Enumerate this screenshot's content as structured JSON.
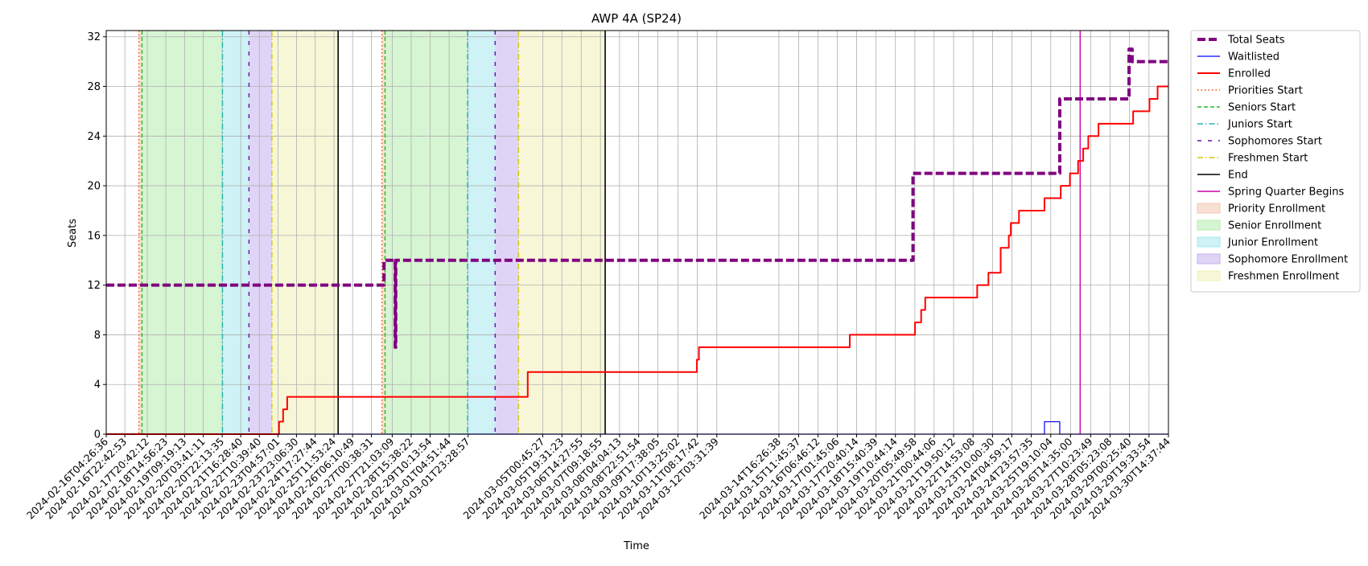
{
  "chart_data": {
    "type": "line",
    "title": "AWP 4A (SP24)",
    "xlabel": "Time",
    "ylabel": "Seats",
    "ylim": [
      0,
      32.5
    ],
    "yticks": [
      0,
      4,
      8,
      12,
      16,
      20,
      24,
      28,
      32
    ],
    "x_range": [
      "2024-02-16T04:26:36",
      "2024-03-30T14:37:44"
    ],
    "xticks": [
      "2024-02-16T04:26:36",
      "2024-02-16T22:42:53",
      "2024-02-17T20:42:12",
      "2024-02-18T14:56:23",
      "2024-02-19T09:19:13",
      "2024-02-20T03:41:11",
      "2024-02-20T22:13:35",
      "2024-02-21T16:28:40",
      "2024-02-22T10:39:40",
      "2024-02-23T04:57:01",
      "2024-02-23T23:06:30",
      "2024-02-24T17:27:44",
      "2024-02-25T11:53:24",
      "2024-02-26T06:10:49",
      "2024-02-27T00:38:31",
      "2024-02-27T21:03:09",
      "2024-02-28T15:38:22",
      "2024-02-29T10:13:54",
      "2024-03-01T04:51:44",
      "2024-03-01T23:28:57",
      "2024-03-05T00:45:27",
      "2024-03-05T19:31:23",
      "2024-03-06T14:27:55",
      "2024-03-07T09:18:55",
      "2024-03-08T04:04:13",
      "2024-03-08T22:51:54",
      "2024-03-09T17:38:05",
      "2024-03-10T13:25:02",
      "2024-03-11T08:17:42",
      "2024-03-12T03:31:39",
      "2024-03-14T16:26:38",
      "2024-03-15T11:45:37",
      "2024-03-16T06:46:12",
      "2024-03-17T01:45:06",
      "2024-03-17T20:40:14",
      "2024-03-18T15:40:39",
      "2024-03-19T10:44:14",
      "2024-03-20T05:49:58",
      "2024-03-21T00:44:06",
      "2024-03-21T19:50:12",
      "2024-03-22T14:53:08",
      "2024-03-23T10:00:30",
      "2024-03-24T04:59:17",
      "2024-03-24T23:57:35",
      "2024-03-25T19:10:04",
      "2024-03-26T14:35:00",
      "2024-03-27T10:23:49",
      "2024-03-28T05:23:08",
      "2024-03-29T00:25:40",
      "2024-03-29T19:33:54",
      "2024-03-30T14:37:44"
    ],
    "grid": true,
    "legend_position": "outside-top-right",
    "legend": [
      {
        "label": "Total Seats",
        "kind": "line",
        "color": "#800080",
        "dash": "10,4",
        "width": 4
      },
      {
        "label": "Waitlisted",
        "kind": "line",
        "color": "#0000ff",
        "dash": "",
        "width": 1.2
      },
      {
        "label": "Enrolled",
        "kind": "line",
        "color": "#ff0000",
        "dash": "",
        "width": 2
      },
      {
        "label": "Priorities Start",
        "kind": "line",
        "color": "#ff4500",
        "dash": "1.5,3",
        "width": 1.4
      },
      {
        "label": "Seniors Start",
        "kind": "line",
        "color": "#22bb22",
        "dash": "5,3",
        "width": 1.4
      },
      {
        "label": "Juniors Start",
        "kind": "line",
        "color": "#1fb5bb",
        "dash": "7,3,1.5,3",
        "width": 1.4
      },
      {
        "label": "Sophomores Start",
        "kind": "line",
        "color": "#6a0dad",
        "dash": "5,8",
        "width": 1.4
      },
      {
        "label": "Freshmen Start",
        "kind": "line",
        "color": "#d4c700",
        "dash": "7,3,1.5,3",
        "width": 1.4
      },
      {
        "label": "End",
        "kind": "line",
        "color": "#000000",
        "dash": "",
        "width": 1.6
      },
      {
        "label": "Spring Quarter Begins",
        "kind": "line",
        "color": "#cc00aa",
        "dash": "",
        "width": 1.4
      },
      {
        "label": "Priority Enrollment",
        "kind": "patch",
        "color": "#f4c7b0"
      },
      {
        "label": "Senior Enrollment",
        "kind": "patch",
        "color": "#b5ecad"
      },
      {
        "label": "Junior Enrollment",
        "kind": "patch",
        "color": "#a6e8ee"
      },
      {
        "label": "Sophomore Enrollment",
        "kind": "patch",
        "color": "#c5b0ee"
      },
      {
        "label": "Freshmen Enrollment",
        "kind": "patch",
        "color": "#f1f1b8"
      }
    ],
    "regions": [
      {
        "label": "Priority Enrollment",
        "start": "2024-02-17T12:30:00",
        "end": "2024-02-17T15:30:00",
        "color": "#f4c7b0"
      },
      {
        "label": "Senior Enrollment",
        "start": "2024-02-17T15:30:00",
        "end": "2024-02-20T22:30:00",
        "color": "#b5ecad"
      },
      {
        "label": "Junior Enrollment",
        "start": "2024-02-20T22:30:00",
        "end": "2024-02-22T00:30:00",
        "color": "#a6e8ee"
      },
      {
        "label": "Sophomore Enrollment",
        "start": "2024-02-22T00:30:00",
        "end": "2024-02-22T23:00:00",
        "color": "#c5b0ee"
      },
      {
        "label": "Freshmen Enrollment",
        "start": "2024-02-22T23:00:00",
        "end": "2024-02-25T16:00:00",
        "color": "#f1f1b8"
      },
      {
        "label": "Priority Enrollment",
        "start": "2024-02-27T11:00:00",
        "end": "2024-02-27T14:00:00",
        "color": "#f4c7b0"
      },
      {
        "label": "Senior Enrollment",
        "start": "2024-02-27T14:00:00",
        "end": "2024-03-01T23:00:00",
        "color": "#b5ecad"
      },
      {
        "label": "Junior Enrollment",
        "start": "2024-03-01T23:00:00",
        "end": "2024-03-03T02:00:00",
        "color": "#a6e8ee"
      },
      {
        "label": "Sophomore Enrollment",
        "start": "2024-03-03T02:00:00",
        "end": "2024-03-04T01:00:00",
        "color": "#c5b0ee"
      },
      {
        "label": "Freshmen Enrollment",
        "start": "2024-03-04T01:00:00",
        "end": "2024-03-07T14:00:00",
        "color": "#f1f1b8"
      }
    ],
    "event_lines": [
      {
        "label": "Priorities Start",
        "x": "2024-02-17T12:30:00"
      },
      {
        "label": "Seniors Start",
        "x": "2024-02-17T15:30:00"
      },
      {
        "label": "Juniors Start",
        "x": "2024-02-20T22:30:00"
      },
      {
        "label": "Sophomores Start",
        "x": "2024-02-22T00:30:00"
      },
      {
        "label": "Freshmen Start",
        "x": "2024-02-22T23:00:00"
      },
      {
        "label": "End",
        "x": "2024-02-25T16:00:00"
      },
      {
        "label": "Priorities Start",
        "x": "2024-02-27T11:00:00"
      },
      {
        "label": "Seniors Start",
        "x": "2024-02-27T14:00:00"
      },
      {
        "label": "Juniors Start",
        "x": "2024-03-01T23:00:00"
      },
      {
        "label": "Sophomores Start",
        "x": "2024-03-03T02:00:00"
      },
      {
        "label": "Freshmen Start",
        "x": "2024-03-04T01:00:00"
      },
      {
        "label": "End",
        "x": "2024-03-07T14:00:00"
      },
      {
        "label": "Spring Quarter Begins",
        "x": "2024-03-27T00:00:00"
      }
    ],
    "series": [
      {
        "name": "Total Seats",
        "step": "post",
        "points": [
          [
            "2024-02-16T04:26:36",
            12
          ],
          [
            "2024-02-27T13:00:00",
            12
          ],
          [
            "2024-02-27T13:00:00",
            14
          ],
          [
            "2024-02-28T00:00:00",
            14
          ],
          [
            "2024-02-28T00:00:00",
            7
          ],
          [
            "2024-02-28T00:30:00",
            14
          ],
          [
            "2024-03-20T04:00:00",
            14
          ],
          [
            "2024-03-20T04:00:00",
            21
          ],
          [
            "2024-03-26T04:00:00",
            21
          ],
          [
            "2024-03-26T04:00:00",
            27
          ],
          [
            "2024-03-29T00:00:00",
            27
          ],
          [
            "2024-03-29T00:00:00",
            31
          ],
          [
            "2024-03-29T03:00:00",
            30
          ],
          [
            "2024-03-30T14:37:44",
            30
          ]
        ]
      },
      {
        "name": "Waitlisted",
        "step": "post",
        "points": [
          [
            "2024-02-16T04:26:36",
            0
          ],
          [
            "2024-03-25T13:00:00",
            0
          ],
          [
            "2024-03-25T13:00:00",
            1
          ],
          [
            "2024-03-26T04:00:00",
            1
          ],
          [
            "2024-03-26T04:00:00",
            0
          ],
          [
            "2024-03-30T14:37:44",
            0
          ]
        ]
      },
      {
        "name": "Enrolled",
        "step": "post",
        "points": [
          [
            "2024-02-16T04:26:36",
            0
          ],
          [
            "2024-02-23T06:00:00",
            1
          ],
          [
            "2024-02-23T10:00:00",
            2
          ],
          [
            "2024-02-23T14:00:00",
            3
          ],
          [
            "2024-03-04T10:00:00",
            5
          ],
          [
            "2024-03-11T08:00:00",
            6
          ],
          [
            "2024-03-11T10:00:00",
            7
          ],
          [
            "2024-03-17T14:00:00",
            8
          ],
          [
            "2024-03-20T06:00:00",
            9
          ],
          [
            "2024-03-20T12:00:00",
            10
          ],
          [
            "2024-03-20T16:00:00",
            11
          ],
          [
            "2024-03-22T19:00:00",
            12
          ],
          [
            "2024-03-23T06:00:00",
            13
          ],
          [
            "2024-03-23T18:00:00",
            15
          ],
          [
            "2024-03-24T02:00:00",
            16
          ],
          [
            "2024-03-24T04:00:00",
            17
          ],
          [
            "2024-03-24T12:00:00",
            18
          ],
          [
            "2024-03-25T13:00:00",
            19
          ],
          [
            "2024-03-26T05:00:00",
            20
          ],
          [
            "2024-03-26T14:00:00",
            21
          ],
          [
            "2024-03-26T22:00:00",
            22
          ],
          [
            "2024-03-27T03:00:00",
            23
          ],
          [
            "2024-03-27T08:00:00",
            24
          ],
          [
            "2024-03-27T18:00:00",
            25
          ],
          [
            "2024-03-29T04:00:00",
            26
          ],
          [
            "2024-03-29T20:00:00",
            27
          ],
          [
            "2024-03-30T04:00:00",
            28
          ],
          [
            "2024-03-30T14:37:44",
            28
          ]
        ]
      }
    ]
  }
}
